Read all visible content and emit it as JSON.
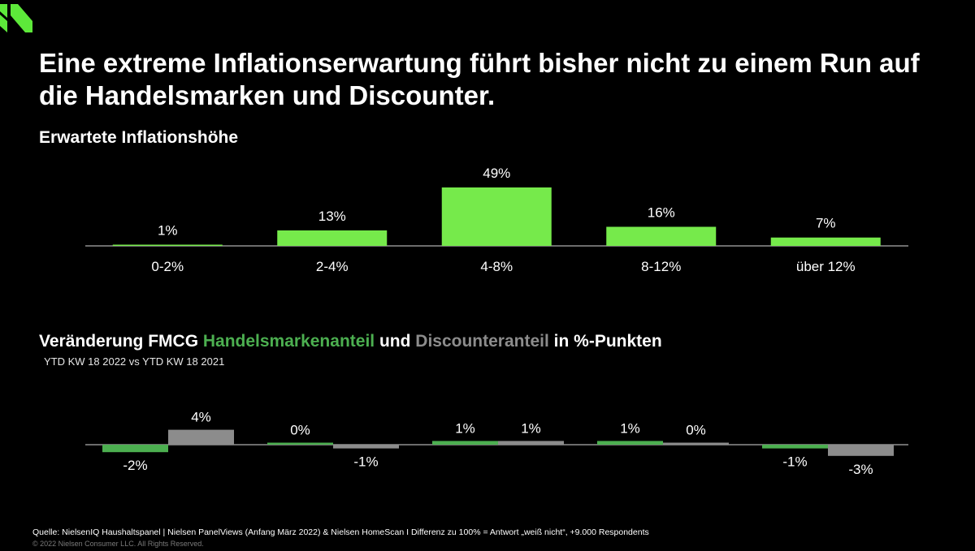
{
  "colors": {
    "bar_green": "#76ea4b",
    "handelsmarken_green": "#4caf50",
    "discounter_grey": "#8c8c8c",
    "logo_green": "#5de83a"
  },
  "header": {
    "title": "Eine extreme Inflationserwartung führt bisher nicht zu einem Run auf die Handelsmarken und Discounter."
  },
  "chart1": {
    "subtitle": "Erwartete Inflationshöhe"
  },
  "chart2": {
    "subtitle_part1": "Veränderung FMCG ",
    "subtitle_part2": "Handelsmarkenanteil",
    "subtitle_part3": " und ",
    "subtitle_part4": "Discounteranteil",
    "subtitle_part5": " in %-Punkten",
    "period": "YTD KW 18 2022 vs YTD KW 18 2021"
  },
  "footer": {
    "source": "Quelle: NielsenIQ Haushaltspanel | Nielsen PanelViews (Anfang März 2022) & Nielsen HomeScan I Differenz zu 100% = Antwort „weiß nicht“, +9.000 Respondents",
    "copyright": "© 2022 Nielsen Consumer LLC. All Rights Reserved."
  },
  "chart_data": [
    {
      "type": "bar",
      "categories": [
        "0-2%",
        "2-4%",
        "4-8%",
        "8-12%",
        "über 12%"
      ],
      "values": [
        1,
        13,
        49,
        16,
        7
      ],
      "value_labels": [
        "1%",
        "13%",
        "49%",
        "16%",
        "7%"
      ],
      "ylim": [
        0,
        49
      ],
      "grid": false,
      "legend": "none"
    },
    {
      "type": "bar",
      "groups": 5,
      "series": [
        {
          "name": "Handelsmarkenanteil",
          "values": [
            -2,
            0,
            1,
            1,
            -1
          ],
          "labels": [
            "-2%",
            "0%",
            "1%",
            "1%",
            "-1%"
          ]
        },
        {
          "name": "Discounteranteil",
          "values": [
            4,
            -1,
            1,
            0,
            -3
          ],
          "labels": [
            "4%",
            "-1%",
            "1%",
            "0%",
            "-3%"
          ]
        }
      ],
      "grid": false,
      "legend": "none"
    }
  ]
}
